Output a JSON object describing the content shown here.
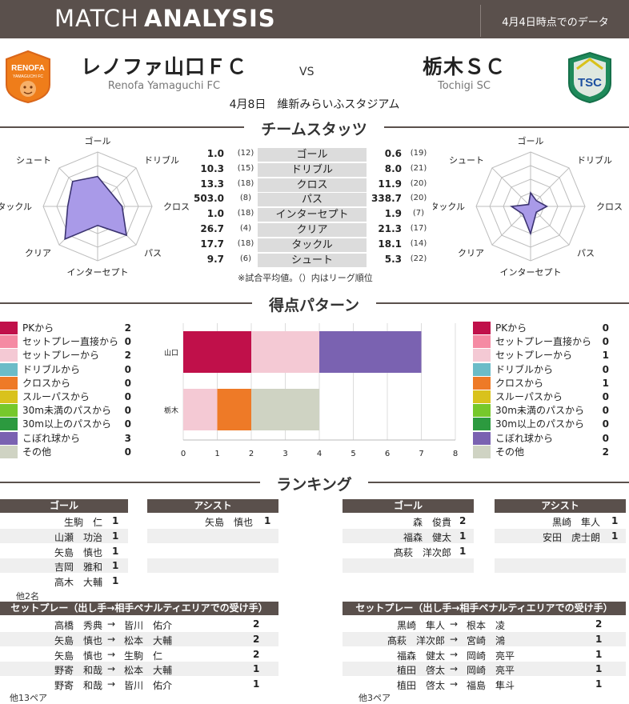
{
  "header": {
    "title_light": "MATCH",
    "title_bold": "ANALYSIS",
    "date_note": "4月4日時点でのデータ"
  },
  "match": {
    "home": {
      "name": "レノファ山口ＦＣ",
      "name_en": "Renofa Yamaguchi FC",
      "logo_text": "RENOFA",
      "logo_sub": "YAMAGUCHI FC"
    },
    "vs": "VS",
    "away": {
      "name": "栃木ＳＣ",
      "name_en": "Tochigi SC",
      "logo_text": "TSC"
    },
    "date_venue": "4月8日　維新みらいふスタジアム",
    "colors": {
      "home": "#ef7d1a",
      "away": "#1e8a5a",
      "header": "#5a504c"
    }
  },
  "team_stats": {
    "title": "チームスタッツ",
    "note": "※試合平均値。（）内はリーグ順位",
    "radar_axes": [
      "ゴール",
      "ドリブル",
      "クロス",
      "パス",
      "インターセプト",
      "クリア",
      "タックル",
      "シュート"
    ],
    "rows": [
      {
        "label": "ゴール",
        "home": "1.0",
        "home_rank": "(12)",
        "away": "0.6",
        "away_rank": "(19)"
      },
      {
        "label": "ドリブル",
        "home": "10.3",
        "home_rank": "(15)",
        "away": "8.0",
        "away_rank": "(21)"
      },
      {
        "label": "クロス",
        "home": "13.3",
        "home_rank": "(18)",
        "away": "11.9",
        "away_rank": "(20)"
      },
      {
        "label": "パス",
        "home": "503.0",
        "home_rank": "(8)",
        "away": "338.7",
        "away_rank": "(20)"
      },
      {
        "label": "インターセプト",
        "home": "1.0",
        "home_rank": "(18)",
        "away": "1.9",
        "away_rank": "(7)"
      },
      {
        "label": "クリア",
        "home": "26.7",
        "home_rank": "(4)",
        "away": "21.3",
        "away_rank": "(17)"
      },
      {
        "label": "タックル",
        "home": "17.7",
        "home_rank": "(18)",
        "away": "18.1",
        "away_rank": "(14)"
      },
      {
        "label": "シュート",
        "home": "9.7",
        "home_rank": "(6)",
        "away": "5.3",
        "away_rank": "(22)"
      }
    ],
    "radar_home_levels": [
      0.55,
      0.35,
      0.45,
      0.75,
      0.35,
      0.85,
      0.55,
      0.65
    ],
    "radar_away_levels": [
      0.25,
      0.15,
      0.3,
      0.15,
      0.5,
      0.2,
      0.35,
      0.05
    ],
    "radar_fill": "#a99ae8",
    "radar_stroke": "#3b3370"
  },
  "goal_pattern": {
    "title": "得点パターン",
    "categories": [
      "PKから",
      "セットプレー直接から",
      "セットプレーから",
      "ドリブルから",
      "クロスから",
      "スルーパスから",
      "30m未満のパスから",
      "30m以上のパスから",
      "こぼれ球から",
      "その他"
    ],
    "colors": [
      "#c0104a",
      "#f58aa3",
      "#f4c9d4",
      "#6bbcc8",
      "#ee7a27",
      "#d9c21c",
      "#76c82b",
      "#2c9a3f",
      "#7a62b1",
      "#cfd3c3"
    ],
    "home_values": [
      2,
      0,
      2,
      0,
      0,
      0,
      0,
      0,
      3,
      0
    ],
    "away_values": [
      0,
      0,
      1,
      0,
      1,
      0,
      0,
      0,
      0,
      2
    ]
  },
  "chart_data": {
    "type": "bar",
    "orientation": "horizontal-stacked",
    "categories": [
      "山口",
      "栃木"
    ],
    "series": [
      {
        "name": "PKから",
        "values": [
          2,
          0
        ]
      },
      {
        "name": "セットプレー直接から",
        "values": [
          0,
          0
        ]
      },
      {
        "name": "セットプレーから",
        "values": [
          2,
          1
        ]
      },
      {
        "name": "ドリブルから",
        "values": [
          0,
          0
        ]
      },
      {
        "name": "クロスから",
        "values": [
          0,
          1
        ]
      },
      {
        "name": "スルーパスから",
        "values": [
          0,
          0
        ]
      },
      {
        "name": "30m未満のパスから",
        "values": [
          0,
          0
        ]
      },
      {
        "name": "30m以上のパスから",
        "values": [
          0,
          0
        ]
      },
      {
        "name": "こぼれ球から",
        "values": [
          3,
          0
        ]
      },
      {
        "name": "その他",
        "values": [
          0,
          2
        ]
      }
    ],
    "xlim": [
      0,
      8
    ],
    "xticks": [
      "0",
      "1",
      "2",
      "3",
      "4",
      "5",
      "6",
      "7",
      "8"
    ],
    "grid": true
  },
  "ranking": {
    "title": "ランキング",
    "goal_head": "ゴール",
    "assist_head": "アシスト",
    "home_goals": [
      {
        "name": "生駒　仁",
        "count": "1"
      },
      {
        "name": "山瀬　功治",
        "count": "1"
      },
      {
        "name": "矢島　慎也",
        "count": "1"
      },
      {
        "name": "吉岡　雅和",
        "count": "1"
      },
      {
        "name": "高木　大輔",
        "count": "1"
      }
    ],
    "home_goals_more": "他2名",
    "home_assists": [
      {
        "name": "矢島　慎也",
        "count": "1"
      }
    ],
    "away_goals": [
      {
        "name": "森　俊貴",
        "count": "2"
      },
      {
        "name": "福森　健太",
        "count": "1"
      },
      {
        "name": "髙萩　洋次郎",
        "count": "1"
      }
    ],
    "away_assists": [
      {
        "name": "黒崎　隼人",
        "count": "1"
      },
      {
        "name": "安田　虎士朗",
        "count": "1"
      }
    ],
    "setplay_head": "セットプレー（出し手→相手ペナルティエリアでの受け手）",
    "home_setplay": [
      {
        "from": "高橋　秀典",
        "to": "皆川　佑介",
        "count": "2"
      },
      {
        "from": "矢島　慎也",
        "to": "松本　大輔",
        "count": "2"
      },
      {
        "from": "矢島　慎也",
        "to": "生駒　仁",
        "count": "2"
      },
      {
        "from": "野寄　和哉",
        "to": "松本　大輔",
        "count": "1"
      },
      {
        "from": "野寄　和哉",
        "to": "皆川　佑介",
        "count": "1"
      }
    ],
    "home_setplay_more": "他13ペア",
    "away_setplay": [
      {
        "from": "黒崎　隼人",
        "to": "根本　凌",
        "count": "2"
      },
      {
        "from": "髙萩　洋次郎",
        "to": "宮崎　鴻",
        "count": "1"
      },
      {
        "from": "福森　健太",
        "to": "岡崎　亮平",
        "count": "1"
      },
      {
        "from": "植田　啓太",
        "to": "岡崎　亮平",
        "count": "1"
      },
      {
        "from": "植田　啓太",
        "to": "福島　隼斗",
        "count": "1"
      }
    ],
    "away_setplay_more": "他3ペア",
    "arrow": "→"
  }
}
